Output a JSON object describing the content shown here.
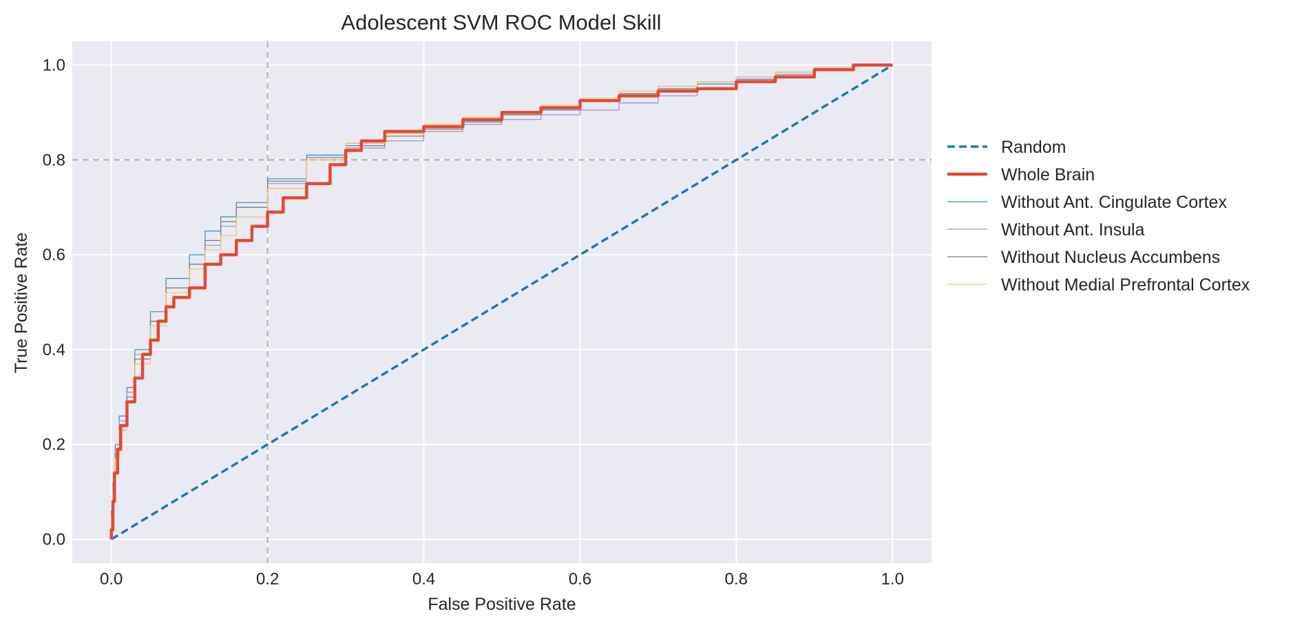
{
  "chart_data": {
    "type": "line",
    "title": "Adolescent SVM ROC Model Skill",
    "xlabel": "False Positive Rate",
    "ylabel": "True Positive Rate",
    "xlim": [
      -0.05,
      1.05
    ],
    "ylim": [
      -0.05,
      1.05
    ],
    "xticks": [
      0.0,
      0.2,
      0.4,
      0.6,
      0.8,
      1.0
    ],
    "yticks": [
      0.0,
      0.2,
      0.4,
      0.6,
      0.8,
      1.0
    ],
    "xtick_labels": [
      "0.0",
      "0.2",
      "0.4",
      "0.6",
      "0.8",
      "1.0"
    ],
    "ytick_labels": [
      "0.0",
      "0.2",
      "0.4",
      "0.6",
      "0.8",
      "1.0"
    ],
    "grid": true,
    "legend_position": "outside-right",
    "reference_lines": [
      {
        "orientation": "vertical",
        "value": 0.2,
        "color": "#b5b5b5",
        "style": "dashed"
      },
      {
        "orientation": "horizontal",
        "value": 0.8,
        "color": "#b5b5b5",
        "style": "dashed"
      }
    ],
    "series": [
      {
        "name": "Random",
        "color": "#1f77b4",
        "style": "dashed",
        "width": "thick",
        "points": [
          [
            0,
            0
          ],
          [
            1,
            1
          ]
        ]
      },
      {
        "name": "Whole Brain",
        "color": "#e24a33",
        "style": "solid",
        "width": "bold",
        "points": [
          [
            0,
            0
          ],
          [
            0.002,
            0.02
          ],
          [
            0.004,
            0.08
          ],
          [
            0.008,
            0.14
          ],
          [
            0.012,
            0.19
          ],
          [
            0.02,
            0.24
          ],
          [
            0.03,
            0.29
          ],
          [
            0.04,
            0.34
          ],
          [
            0.05,
            0.39
          ],
          [
            0.06,
            0.42
          ],
          [
            0.07,
            0.46
          ],
          [
            0.08,
            0.49
          ],
          [
            0.1,
            0.51
          ],
          [
            0.12,
            0.53
          ],
          [
            0.14,
            0.58
          ],
          [
            0.16,
            0.6
          ],
          [
            0.18,
            0.63
          ],
          [
            0.2,
            0.66
          ],
          [
            0.22,
            0.69
          ],
          [
            0.25,
            0.72
          ],
          [
            0.28,
            0.75
          ],
          [
            0.3,
            0.79
          ],
          [
            0.32,
            0.82
          ],
          [
            0.35,
            0.84
          ],
          [
            0.4,
            0.86
          ],
          [
            0.45,
            0.87
          ],
          [
            0.5,
            0.885
          ],
          [
            0.55,
            0.9
          ],
          [
            0.6,
            0.91
          ],
          [
            0.65,
            0.925
          ],
          [
            0.7,
            0.935
          ],
          [
            0.75,
            0.945
          ],
          [
            0.8,
            0.95
          ],
          [
            0.85,
            0.965
          ],
          [
            0.9,
            0.975
          ],
          [
            0.95,
            0.99
          ],
          [
            1.0,
            1.0
          ]
        ]
      },
      {
        "name": "Without Ant. Cingulate Cortex",
        "color": "#348abd",
        "style": "solid",
        "width": "thin",
        "points": [
          [
            0,
            0
          ],
          [
            0.002,
            0.06
          ],
          [
            0.005,
            0.12
          ],
          [
            0.01,
            0.2
          ],
          [
            0.02,
            0.26
          ],
          [
            0.03,
            0.32
          ],
          [
            0.05,
            0.4
          ],
          [
            0.07,
            0.48
          ],
          [
            0.1,
            0.55
          ],
          [
            0.12,
            0.6
          ],
          [
            0.14,
            0.65
          ],
          [
            0.16,
            0.68
          ],
          [
            0.2,
            0.71
          ],
          [
            0.25,
            0.76
          ],
          [
            0.3,
            0.81
          ],
          [
            0.35,
            0.835
          ],
          [
            0.4,
            0.855
          ],
          [
            0.45,
            0.87
          ],
          [
            0.5,
            0.88
          ],
          [
            0.55,
            0.895
          ],
          [
            0.6,
            0.905
          ],
          [
            0.65,
            0.925
          ],
          [
            0.7,
            0.94
          ],
          [
            0.75,
            0.95
          ],
          [
            0.8,
            0.96
          ],
          [
            0.85,
            0.97
          ],
          [
            0.9,
            0.98
          ],
          [
            0.95,
            0.99
          ],
          [
            1.0,
            1.0
          ]
        ]
      },
      {
        "name": "Without Ant. Insula",
        "color": "#988ed5",
        "style": "solid",
        "width": "thin",
        "points": [
          [
            0,
            0
          ],
          [
            0.002,
            0.05
          ],
          [
            0.005,
            0.11
          ],
          [
            0.01,
            0.19
          ],
          [
            0.02,
            0.25
          ],
          [
            0.03,
            0.31
          ],
          [
            0.05,
            0.39
          ],
          [
            0.07,
            0.46
          ],
          [
            0.1,
            0.53
          ],
          [
            0.12,
            0.58
          ],
          [
            0.14,
            0.62
          ],
          [
            0.16,
            0.66
          ],
          [
            0.2,
            0.7
          ],
          [
            0.25,
            0.75
          ],
          [
            0.3,
            0.8
          ],
          [
            0.35,
            0.825
          ],
          [
            0.4,
            0.84
          ],
          [
            0.45,
            0.86
          ],
          [
            0.5,
            0.875
          ],
          [
            0.55,
            0.885
          ],
          [
            0.6,
            0.895
          ],
          [
            0.65,
            0.905
          ],
          [
            0.7,
            0.92
          ],
          [
            0.75,
            0.935
          ],
          [
            0.8,
            0.95
          ],
          [
            0.85,
            0.965
          ],
          [
            0.9,
            0.98
          ],
          [
            0.95,
            0.99
          ],
          [
            1.0,
            1.0
          ]
        ]
      },
      {
        "name": "Without Nucleus Accumbens",
        "color": "#777777",
        "style": "solid",
        "width": "thin",
        "points": [
          [
            0,
            0
          ],
          [
            0.002,
            0.04
          ],
          [
            0.005,
            0.1
          ],
          [
            0.01,
            0.18
          ],
          [
            0.02,
            0.24
          ],
          [
            0.03,
            0.3
          ],
          [
            0.05,
            0.38
          ],
          [
            0.07,
            0.46
          ],
          [
            0.1,
            0.53
          ],
          [
            0.12,
            0.58
          ],
          [
            0.14,
            0.63
          ],
          [
            0.16,
            0.67
          ],
          [
            0.2,
            0.7
          ],
          [
            0.25,
            0.755
          ],
          [
            0.3,
            0.805
          ],
          [
            0.35,
            0.83
          ],
          [
            0.4,
            0.85
          ],
          [
            0.45,
            0.865
          ],
          [
            0.5,
            0.88
          ],
          [
            0.55,
            0.895
          ],
          [
            0.6,
            0.91
          ],
          [
            0.65,
            0.925
          ],
          [
            0.7,
            0.94
          ],
          [
            0.75,
            0.955
          ],
          [
            0.8,
            0.965
          ],
          [
            0.85,
            0.975
          ],
          [
            0.9,
            0.985
          ],
          [
            0.95,
            0.995
          ],
          [
            1.0,
            1.0
          ]
        ]
      },
      {
        "name": "Without Medial Prefrontal Cortex",
        "color": "#fbc15e",
        "style": "solid",
        "width": "thin",
        "points": [
          [
            0,
            0
          ],
          [
            0.002,
            0.05
          ],
          [
            0.005,
            0.1
          ],
          [
            0.01,
            0.17
          ],
          [
            0.02,
            0.23
          ],
          [
            0.03,
            0.29
          ],
          [
            0.05,
            0.37
          ],
          [
            0.07,
            0.45
          ],
          [
            0.1,
            0.52
          ],
          [
            0.12,
            0.57
          ],
          [
            0.14,
            0.61
          ],
          [
            0.16,
            0.64
          ],
          [
            0.2,
            0.68
          ],
          [
            0.25,
            0.74
          ],
          [
            0.3,
            0.8
          ],
          [
            0.35,
            0.835
          ],
          [
            0.4,
            0.855
          ],
          [
            0.45,
            0.875
          ],
          [
            0.5,
            0.89
          ],
          [
            0.55,
            0.9
          ],
          [
            0.6,
            0.915
          ],
          [
            0.65,
            0.93
          ],
          [
            0.7,
            0.945
          ],
          [
            0.75,
            0.955
          ],
          [
            0.8,
            0.965
          ],
          [
            0.85,
            0.975
          ],
          [
            0.9,
            0.985
          ],
          [
            0.95,
            0.995
          ],
          [
            1.0,
            1.0
          ]
        ]
      }
    ]
  }
}
